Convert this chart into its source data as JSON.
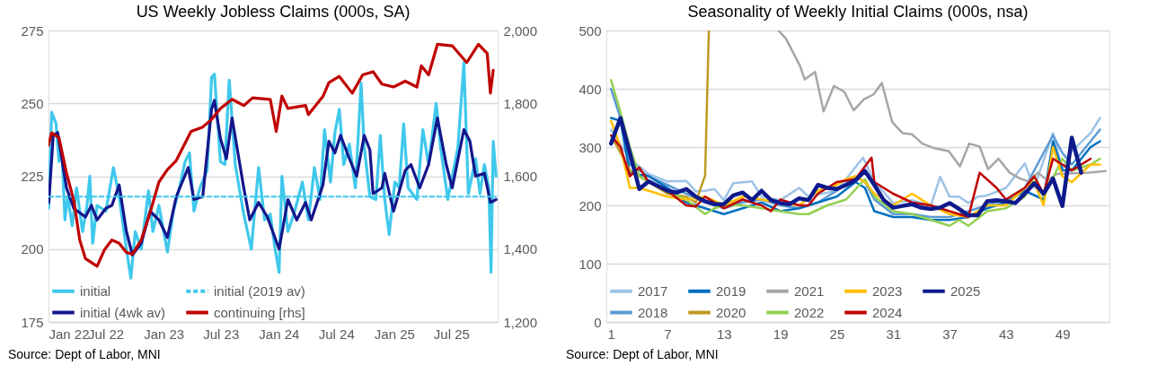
{
  "chart_data": [
    {
      "type": "line",
      "title": "US Weekly Jobless Claims (000s, SA)",
      "xlim": [
        "2022-01-01",
        "2025-11-25"
      ],
      "xticks": [
        {
          "value": "2022-01-01",
          "label": "Jan 22"
        },
        {
          "value": "2022-07-01",
          "label": "Jul 22"
        },
        {
          "value": "2023-01-01",
          "label": "Jan 23"
        },
        {
          "value": "2023-07-01",
          "label": "Jul 23"
        },
        {
          "value": "2024-01-01",
          "label": "Jan 24"
        },
        {
          "value": "2024-07-01",
          "label": "Jul 24"
        },
        {
          "value": "2025-01-01",
          "label": "Jan 25"
        },
        {
          "value": "2025-07-01",
          "label": "Jul 25"
        }
      ],
      "ylim": [
        175,
        275
      ],
      "yticks": [
        175,
        200,
        225,
        250,
        275
      ],
      "y2lim": [
        1200,
        2000
      ],
      "y2ticks": [
        {
          "value": 1200,
          "label": "1,200"
        },
        {
          "value": 1400,
          "label": "1,400"
        },
        {
          "value": 1600,
          "label": "1,600"
        },
        {
          "value": 1800,
          "label": "1,800"
        },
        {
          "value": 2000,
          "label": "2,000"
        }
      ],
      "grid": "y",
      "legend": "bottom left",
      "annotations": [
        "Source: Dept of Labor, MNI"
      ],
      "series": [
        {
          "name": "initial",
          "color": "#3fc8ec",
          "x": [
            "2022-01-02",
            "2022-01-11",
            "2022-01-25",
            "2022-02-03",
            "2022-02-13",
            "2022-02-22",
            "2022-03-03",
            "2022-03-17",
            "2022-03-31",
            "2022-04-19",
            "2022-05-03",
            "2022-05-12",
            "2022-05-21",
            "2022-06-04",
            "2022-07-02",
            "2022-07-26",
            "2022-08-13",
            "2022-09-05",
            "2022-09-19",
            "2022-10-03",
            "2022-10-22",
            "2022-11-14",
            "2022-11-28",
            "2022-12-17",
            "2023-01-13",
            "2023-02-01",
            "2023-02-20",
            "2023-03-10",
            "2023-03-24",
            "2023-04-07",
            "2023-04-26",
            "2023-05-19",
            "2023-06-02",
            "2023-06-11",
            "2023-06-30",
            "2023-07-14",
            "2023-07-28",
            "2023-08-16",
            "2023-09-12",
            "2023-10-06",
            "2023-10-29",
            "2023-11-17",
            "2023-12-05",
            "2023-12-19",
            "2024-01-02",
            "2024-01-11",
            "2024-01-30",
            "2024-02-18",
            "2024-03-16",
            "2024-04-04",
            "2024-04-23",
            "2024-05-11",
            "2024-05-25",
            "2024-06-13",
            "2024-06-27",
            "2024-07-11",
            "2024-07-25",
            "2024-08-12",
            "2024-08-31",
            "2024-09-18",
            "2024-09-28",
            "2024-10-16",
            "2024-11-04",
            "2024-11-18",
            "2024-12-02",
            "2024-12-16",
            "2025-01-03",
            "2025-01-17",
            "2025-01-31",
            "2025-02-14",
            "2025-03-14",
            "2025-04-02",
            "2025-04-20",
            "2025-05-14",
            "2025-05-28",
            "2025-06-20",
            "2025-07-22",
            "2025-08-10",
            "2025-08-24",
            "2025-09-16",
            "2025-09-30",
            "2025-10-14",
            "2025-10-28",
            "2025-11-04",
            "2025-11-11",
            "2025-11-20"
          ],
          "values": [
            214,
            247,
            243,
            230,
            233,
            210,
            218,
            208,
            221,
            206,
            215,
            225,
            202,
            215,
            213,
            228,
            218,
            200,
            190,
            206,
            200,
            220,
            206,
            215,
            199,
            213,
            221,
            230,
            233,
            213,
            221,
            227,
            259,
            260,
            230,
            229,
            258,
            229,
            212,
            200,
            228,
            210,
            212,
            201,
            192,
            225,
            206,
            212,
            223,
            210,
            228,
            217,
            241,
            223,
            240,
            248,
            229,
            236,
            221,
            257,
            235,
            218,
            217,
            239,
            217,
            205,
            223,
            221,
            243,
            221,
            217,
            241,
            229,
            250,
            235,
            217,
            235,
            264,
            219,
            231,
            219,
            229,
            221,
            192,
            237,
            225
          ]
        },
        {
          "name": "initial (4wk av)",
          "color": "#14168c",
          "x": [
            "2022-01-02",
            "2022-01-16",
            "2022-01-30",
            "2022-02-27",
            "2022-03-22",
            "2022-04-28",
            "2022-05-17",
            "2022-06-04",
            "2022-07-02",
            "2022-07-21",
            "2022-08-13",
            "2022-09-05",
            "2022-09-24",
            "2022-10-22",
            "2022-11-19",
            "2022-12-17",
            "2023-01-13",
            "2023-02-10",
            "2023-03-20",
            "2023-04-07",
            "2023-05-05",
            "2023-06-02",
            "2023-06-11",
            "2023-06-30",
            "2023-07-19",
            "2023-08-06",
            "2023-09-12",
            "2023-10-01",
            "2023-10-29",
            "2023-11-26",
            "2024-01-02",
            "2024-01-30",
            "2024-02-27",
            "2024-03-26",
            "2024-04-13",
            "2024-05-20",
            "2024-06-08",
            "2024-06-27",
            "2024-07-15",
            "2024-08-12",
            "2024-09-04",
            "2024-09-28",
            "2024-10-16",
            "2024-10-26",
            "2024-11-23",
            "2024-12-02",
            "2024-12-30",
            "2025-02-05",
            "2025-02-23",
            "2025-03-23",
            "2025-04-20",
            "2025-05-18",
            "2025-06-15",
            "2025-07-04",
            "2025-08-10",
            "2025-08-29",
            "2025-09-16",
            "2025-10-14",
            "2025-11-02",
            "2025-11-20"
          ],
          "values": [
            216,
            239,
            240,
            221,
            214,
            211,
            215,
            210,
            214,
            215,
            222,
            206,
            198,
            202,
            213,
            210,
            204,
            218,
            228,
            217,
            218,
            248,
            251,
            238,
            231,
            245,
            221,
            210,
            216,
            211,
            200,
            217,
            210,
            216,
            210,
            222,
            237,
            233,
            239,
            231,
            225,
            239,
            234,
            219,
            221,
            226,
            213,
            227,
            229,
            221,
            229,
            245,
            229,
            221,
            241,
            237,
            225,
            226,
            216,
            217
          ]
        },
        {
          "name": "initial (2019 av)",
          "color": "#3fc8ec",
          "line_style": "dashed",
          "x": [
            "2022-01-02",
            "2025-11-20"
          ],
          "values": [
            218,
            218
          ]
        },
        {
          "name": "continuing [rhs]",
          "color": "#c00000",
          "axis": "y2",
          "x": [
            "2022-01-01",
            "2022-01-11",
            "2022-02-03",
            "2022-02-27",
            "2022-03-22",
            "2022-04-10",
            "2022-04-28",
            "2022-06-04",
            "2022-06-28",
            "2022-07-21",
            "2022-08-13",
            "2022-09-05",
            "2022-09-24",
            "2022-10-22",
            "2022-11-19",
            "2022-12-17",
            "2023-01-13",
            "2023-02-10",
            "2023-03-29",
            "2023-05-05",
            "2023-06-02",
            "2023-06-30",
            "2023-08-06",
            "2023-09-12",
            "2023-10-10",
            "2023-12-05",
            "2023-12-24",
            "2024-01-11",
            "2024-01-30",
            "2024-03-26",
            "2024-04-04",
            "2024-05-20",
            "2024-06-08",
            "2024-07-11",
            "2024-08-21",
            "2024-09-23",
            "2024-10-26",
            "2024-11-23",
            "2024-12-30",
            "2025-02-05",
            "2025-03-14",
            "2025-03-28",
            "2025-04-20",
            "2025-05-18",
            "2025-07-04",
            "2025-08-19",
            "2025-09-25",
            "2025-10-23",
            "2025-11-02",
            "2025-11-11"
          ],
          "values": [
            1685,
            1719,
            1706,
            1609,
            1534,
            1425,
            1374,
            1353,
            1399,
            1425,
            1416,
            1391,
            1386,
            1425,
            1500,
            1584,
            1618,
            1643,
            1723,
            1735,
            1756,
            1786,
            1811,
            1794,
            1815,
            1811,
            1723,
            1820,
            1786,
            1794,
            1769,
            1819,
            1857,
            1874,
            1828,
            1878,
            1887,
            1853,
            1845,
            1861,
            1845,
            1903,
            1878,
            1962,
            1958,
            1912,
            1962,
            1937,
            1828,
            1891
          ]
        }
      ]
    },
    {
      "type": "line",
      "title": "Seasonality of Weekly Initial Claims (000s, nsa)",
      "xlim": [
        0.5,
        54
      ],
      "xticks": [
        1,
        7,
        13,
        19,
        25,
        31,
        37,
        43,
        49
      ],
      "ylim": [
        0,
        500
      ],
      "yticks": [
        0,
        100,
        200,
        300,
        400,
        500
      ],
      "grid": "y",
      "legend": "bottom left",
      "annotations": [
        "Source: Dept of Labor, MNI"
      ],
      "series": [
        {
          "name": "2017",
          "color": "#9dc3e6",
          "x": [
            1,
            3,
            5,
            7,
            9,
            10,
            11,
            12,
            13,
            14,
            16,
            17,
            19,
            21,
            22,
            25,
            27.8,
            29,
            31,
            33,
            35,
            36,
            37,
            38,
            39,
            40,
            41,
            43,
            45,
            46,
            48,
            49,
            50,
            52,
            53
          ],
          "values": [
            330,
            280,
            254,
            241,
            242,
            224,
            225,
            228,
            209,
            238,
            241,
            215,
            209,
            230,
            215,
            225,
            282,
            241,
            204,
            209,
            199,
            249,
            215,
            215,
            204,
            215,
            217,
            230,
            272,
            230,
            324,
            262,
            293,
            324,
            350
          ]
        },
        {
          "name": "2018",
          "color": "#5b9bd5",
          "x": [
            1,
            2,
            3,
            5,
            7,
            9,
            11,
            13,
            15,
            17,
            19,
            21,
            23,
            25,
            27,
            28,
            29,
            31,
            33,
            35,
            37,
            39,
            41,
            43,
            45,
            46,
            48,
            49,
            50,
            52,
            53
          ],
          "values": [
            400,
            350,
            270,
            250,
            235,
            220,
            205,
            195,
            205,
            210,
            200,
            195,
            205,
            225,
            250,
            240,
            210,
            185,
            185,
            180,
            180,
            190,
            200,
            210,
            230,
            260,
            320,
            290,
            270,
            310,
            330
          ]
        },
        {
          "name": "2019",
          "color": "#0070c0",
          "x": [
            1,
            2,
            3,
            5,
            7,
            9,
            11,
            13,
            15,
            17,
            19,
            21,
            23,
            25,
            27,
            28,
            29,
            31,
            33,
            35,
            37,
            39,
            41,
            43,
            45,
            47,
            48,
            49,
            50,
            52,
            53
          ],
          "values": [
            350,
            345,
            255,
            250,
            230,
            205,
            195,
            185,
            195,
            205,
            190,
            195,
            205,
            215,
            240,
            230,
            190,
            180,
            180,
            175,
            175,
            180,
            195,
            205,
            225,
            210,
            310,
            260,
            260,
            300,
            310
          ]
        },
        {
          "name": "2020",
          "color": "#bf9b1f",
          "x": [
            1,
            3,
            5,
            7,
            9,
            10,
            11,
            11.4
          ],
          "values": [
            320,
            260,
            240,
            220,
            215,
            205,
            251,
            500
          ]
        },
        {
          "name": "2021",
          "color": "#a6a6a6",
          "x": [
            18.8,
            19.6,
            21.1,
            21.6,
            22.7,
            23.6,
            24.7,
            25.8,
            26.8,
            27.9,
            28.9,
            29.8,
            30.9,
            32,
            33,
            34.1,
            35.4,
            36.9,
            38.1,
            39.1,
            40.2,
            41.1,
            42.2,
            43.4,
            44.5,
            45.4,
            46.4,
            47.4,
            48.4,
            51.8,
            53.6
          ],
          "values": [
            500,
            486,
            439,
            416,
            429,
            361,
            405,
            395,
            363,
            382,
            390,
            410,
            343,
            324,
            322,
            306,
            298,
            293,
            267,
            306,
            301,
            262,
            280,
            256,
            246,
            241,
            256,
            243,
            254,
            256,
            259
          ]
        },
        {
          "name": "2022",
          "color": "#92d050",
          "x": [
            1,
            2,
            3,
            4,
            5,
            7,
            9,
            11,
            12,
            13,
            15,
            17,
            19,
            21,
            22,
            24,
            26,
            28,
            29,
            31,
            33,
            35,
            37,
            38,
            39,
            41,
            43,
            45,
            46,
            47,
            49,
            50,
            52,
            53
          ],
          "values": [
            415,
            360,
            300,
            250,
            240,
            225,
            210,
            185,
            195,
            200,
            200,
            195,
            190,
            185,
            185,
            200,
            210,
            245,
            215,
            190,
            185,
            175,
            165,
            175,
            165,
            190,
            195,
            215,
            250,
            215,
            280,
            260,
            270,
            280
          ]
        },
        {
          "name": "2023",
          "color": "#ffc000",
          "x": [
            1,
            2,
            3,
            4,
            5,
            7,
            9,
            11,
            13,
            15,
            17,
            19,
            21,
            23,
            25,
            26,
            27,
            28,
            29,
            31,
            33,
            35,
            37,
            39,
            41,
            43,
            45,
            46,
            47,
            48,
            49,
            50,
            52,
            53
          ],
          "values": [
            345,
            300,
            230,
            230,
            225,
            215,
            210,
            215,
            200,
            215,
            210,
            205,
            200,
            225,
            235,
            245,
            250,
            240,
            220,
            200,
            220,
            200,
            185,
            180,
            200,
            200,
            230,
            240,
            200,
            300,
            250,
            240,
            270,
            270
          ]
        },
        {
          "name": "2024",
          "color": "#c00000",
          "x": [
            1,
            2,
            3,
            4,
            5,
            7,
            9,
            10,
            11,
            12,
            13,
            15,
            17,
            18,
            19,
            21,
            22,
            23,
            25,
            27,
            28.7,
            29,
            31,
            33,
            35,
            37,
            39,
            40.2,
            42,
            43,
            45,
            46,
            47,
            48,
            50,
            52
          ],
          "values": [
            320,
            300,
            250,
            265,
            240,
            225,
            200,
            198,
            215,
            205,
            195,
            210,
            200,
            190,
            210,
            200,
            200,
            220,
            240,
            245,
            282,
            240,
            220,
            205,
            200,
            190,
            180,
            256,
            230,
            210,
            230,
            250,
            220,
            280,
            260,
            280
          ]
        },
        {
          "name": "2025",
          "color": "#0e1a8c",
          "x": [
            1,
            2,
            3,
            4,
            5,
            6,
            7,
            8,
            9,
            10,
            11,
            12,
            13,
            14,
            15,
            16,
            17,
            18,
            19,
            20,
            21,
            22,
            23,
            24,
            25,
            26,
            27,
            28,
            29,
            30,
            31,
            32,
            33,
            34,
            35,
            36,
            37,
            38,
            39,
            40,
            41,
            42,
            43,
            44,
            45,
            46,
            47,
            48,
            49,
            50,
            51
          ],
          "values": [
            306,
            350,
            290,
            228,
            241,
            233,
            225,
            222,
            228,
            215,
            207,
            202,
            202,
            217,
            222,
            209,
            225,
            209,
            204,
            202,
            212,
            209,
            235,
            230,
            228,
            235,
            243,
            259,
            235,
            209,
            196,
            199,
            202,
            196,
            194,
            196,
            204,
            194,
            183,
            183,
            207,
            209,
            207,
            204,
            220,
            238,
            220,
            246,
            199,
            316,
            256
          ]
        }
      ]
    }
  ]
}
